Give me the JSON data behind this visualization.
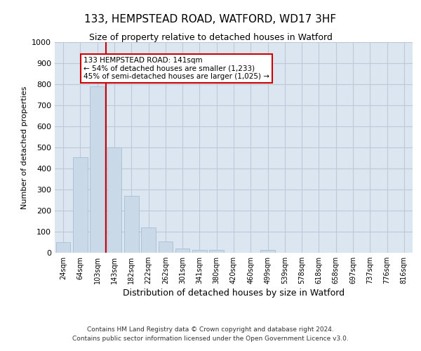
{
  "title": "133, HEMPSTEAD ROAD, WATFORD, WD17 3HF",
  "subtitle": "Size of property relative to detached houses in Watford",
  "xlabel": "Distribution of detached houses by size in Watford",
  "ylabel": "Number of detached properties",
  "footnote1": "Contains HM Land Registry data © Crown copyright and database right 2024.",
  "footnote2": "Contains public sector information licensed under the Open Government Licence v3.0.",
  "categories": [
    "24sqm",
    "64sqm",
    "103sqm",
    "143sqm",
    "182sqm",
    "222sqm",
    "262sqm",
    "301sqm",
    "341sqm",
    "380sqm",
    "420sqm",
    "460sqm",
    "499sqm",
    "539sqm",
    "578sqm",
    "618sqm",
    "658sqm",
    "697sqm",
    "737sqm",
    "776sqm",
    "816sqm"
  ],
  "values": [
    50,
    455,
    790,
    500,
    270,
    120,
    53,
    20,
    12,
    12,
    0,
    0,
    12,
    0,
    0,
    0,
    0,
    0,
    0,
    0,
    0
  ],
  "bar_color": "#c9d9e8",
  "bar_edge_color": "#a0b8d0",
  "grid_color": "#c0c8d8",
  "background_color": "#dce6f0",
  "annotation_text": "133 HEMPSTEAD ROAD: 141sqm\n← 54% of detached houses are smaller (1,233)\n45% of semi-detached houses are larger (1,025) →",
  "annotation_box_color": "#ffffff",
  "annotation_box_edge": "#cc0000",
  "vline_x": 2.5,
  "vline_color": "#cc0000",
  "ylim": [
    0,
    1000
  ],
  "yticks": [
    0,
    100,
    200,
    300,
    400,
    500,
    600,
    700,
    800,
    900,
    1000
  ]
}
